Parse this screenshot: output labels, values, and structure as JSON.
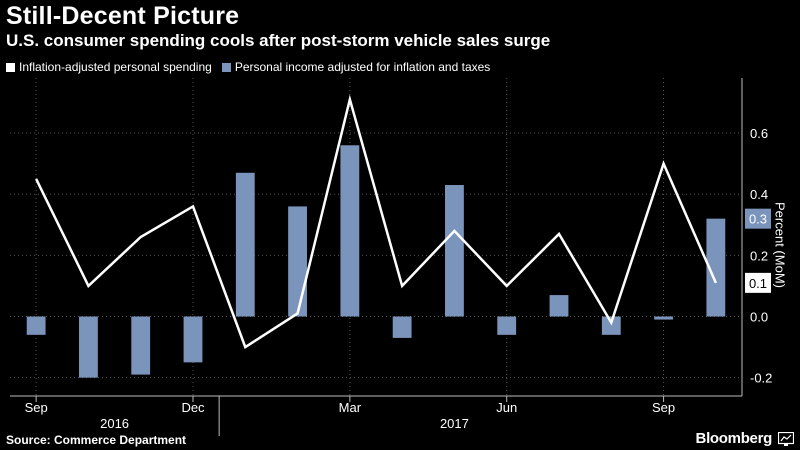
{
  "title": "Still-Decent Picture",
  "subtitle": "U.S. consumer spending cools after post-storm vehicle sales surge",
  "source": "Source: Commerce Department",
  "brand": "Bloomberg",
  "colors": {
    "line": "#ffffff",
    "bar": "#7b94bb",
    "background": "#000000",
    "grid": "#555555"
  },
  "chart_data": {
    "type": "bar+line",
    "ylabel": "Percent (MoM)",
    "ylim": [
      -0.26,
      0.78
    ],
    "yticks": [
      -0.2,
      0.0,
      0.2,
      0.4,
      0.6
    ],
    "ytick_labels": [
      "-0.2",
      "0.0",
      "0.2",
      "0.4",
      "0.6"
    ],
    "x_ticks": [
      {
        "index": 0,
        "label": "Sep"
      },
      {
        "index": 3,
        "label": "Dec"
      },
      {
        "index": 6,
        "label": "Mar"
      },
      {
        "index": 9,
        "label": "Jun"
      },
      {
        "index": 12,
        "label": "Sep"
      }
    ],
    "year_labels": [
      {
        "between": [
          0,
          3
        ],
        "label": "2016"
      },
      {
        "between": [
          7,
          9
        ],
        "label": "2017"
      }
    ],
    "legend": [
      "Inflation-adjusted personal spending",
      "Personal income adjusted for inflation and taxes"
    ],
    "series": [
      {
        "name": "Inflation-adjusted personal spending",
        "kind": "line",
        "values": [
          0.45,
          0.1,
          0.26,
          0.36,
          -0.1,
          0.01,
          0.71,
          0.1,
          0.28,
          0.1,
          0.27,
          -0.02,
          0.5,
          0.11
        ]
      },
      {
        "name": "Personal income adjusted for inflation and taxes",
        "kind": "bar",
        "values": [
          -0.06,
          -0.2,
          -0.19,
          -0.15,
          0.47,
          0.36,
          0.56,
          -0.07,
          0.43,
          -0.06,
          0.07,
          -0.06,
          -0.01,
          0.32
        ]
      }
    ],
    "last_value_tags": [
      {
        "series": "Personal income adjusted for inflation and taxes",
        "label": "0.3"
      },
      {
        "series": "Inflation-adjusted personal spending",
        "label": "0.1"
      }
    ]
  }
}
